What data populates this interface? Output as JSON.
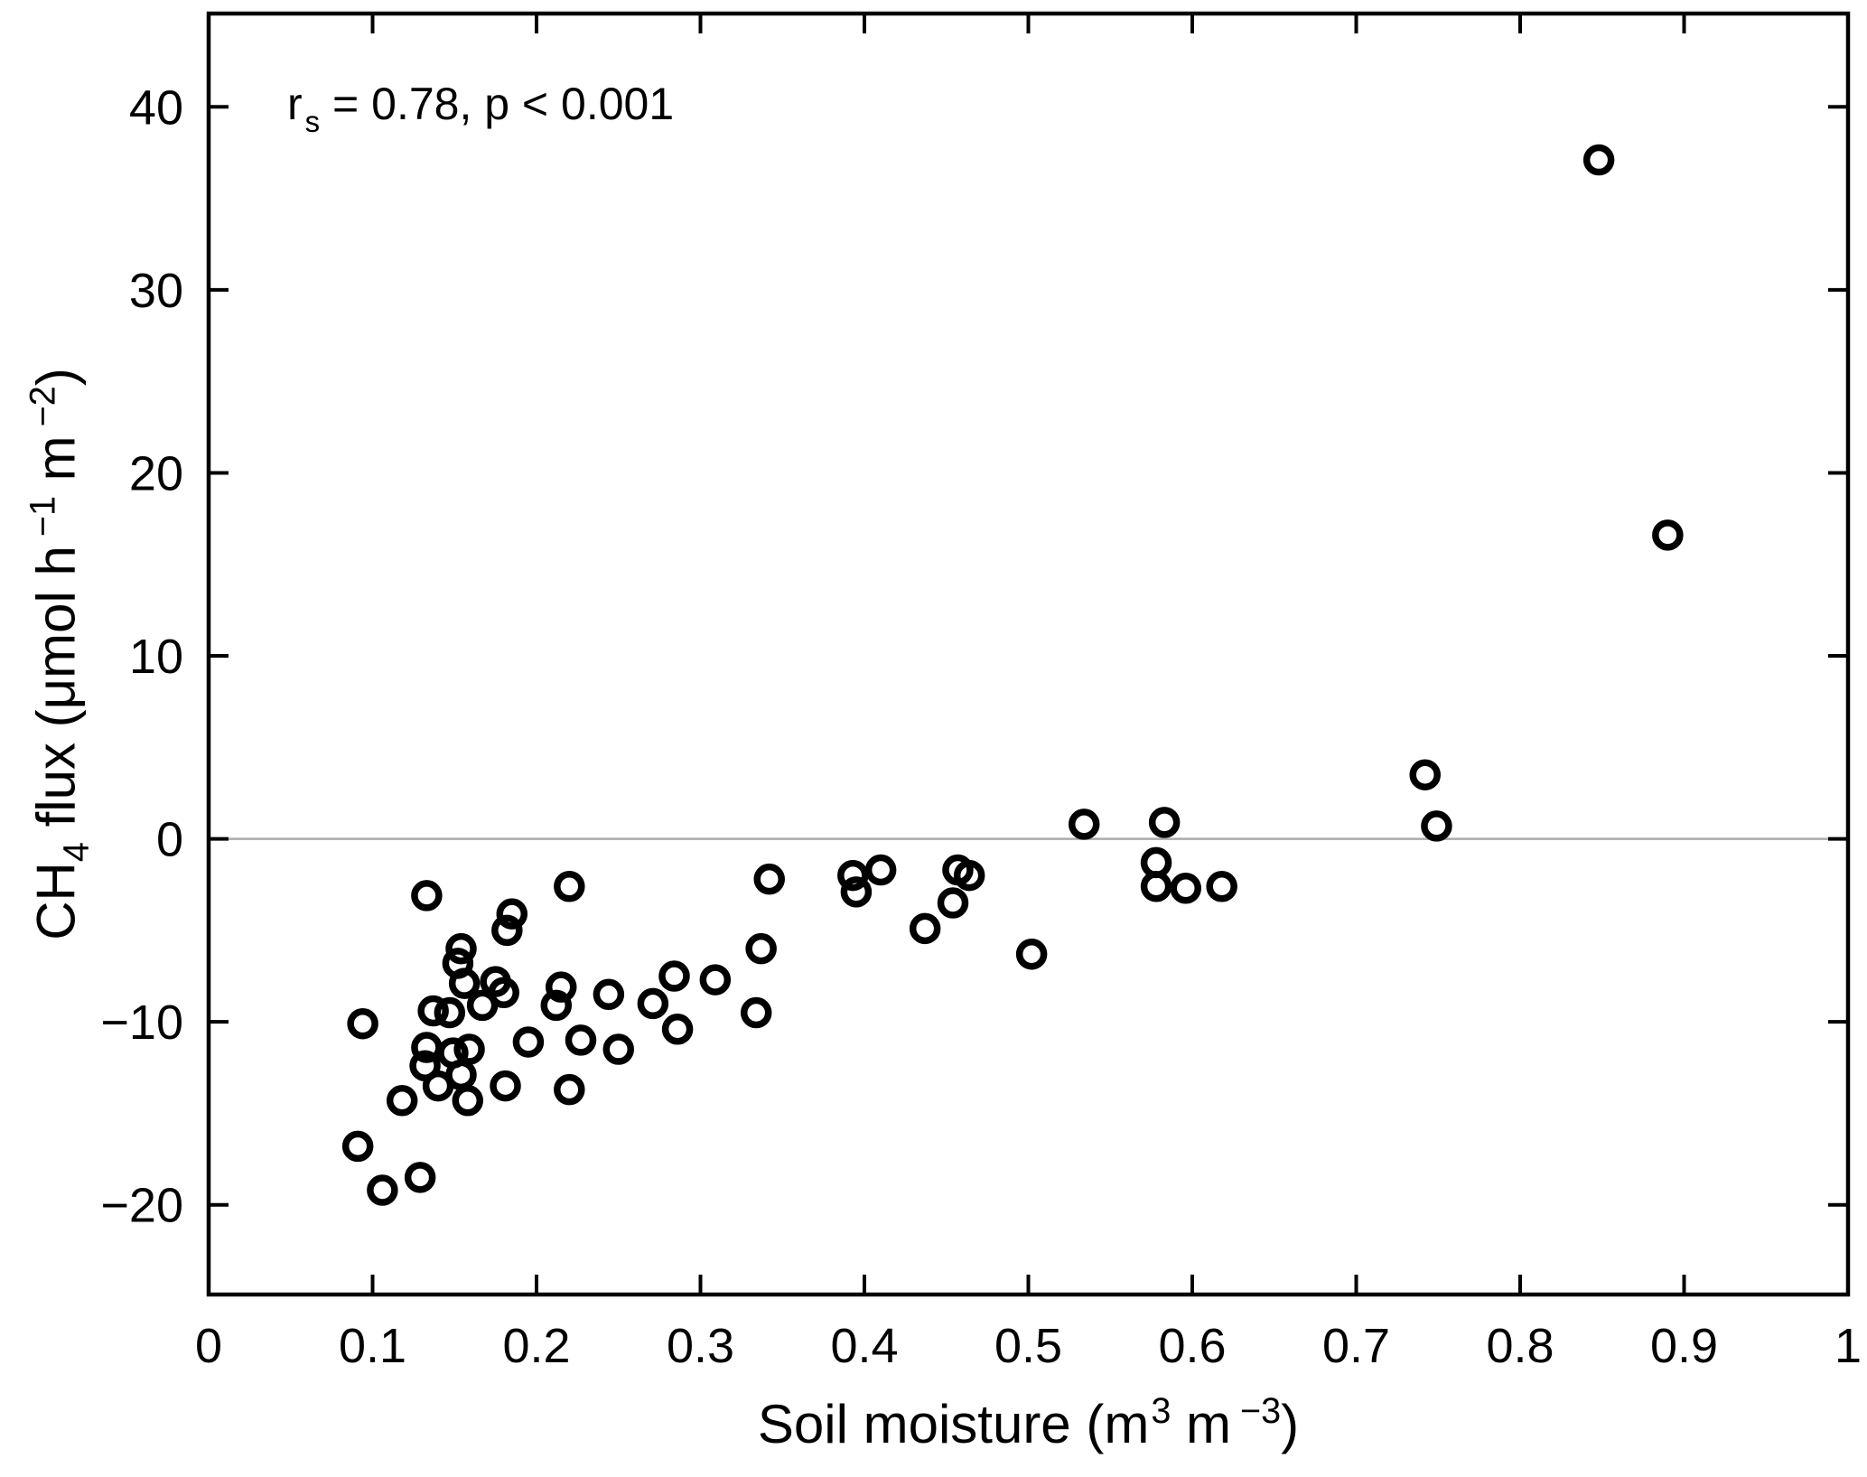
{
  "figure": {
    "annotation": {
      "lead": "r",
      "sub": "s",
      "rest": " = 0.78, p < 0.001"
    },
    "xlabel": {
      "pre": "Soil moisture (m",
      "sup1": "3",
      "mid": " m",
      "sup2": "−3",
      "post": ")"
    },
    "ylabel": {
      "pre": "CH",
      "sub": "4",
      "mid": " flux (μmol h",
      "sup1": "−1",
      "mid2": " m",
      "sup2": "−2",
      "post": ")"
    }
  },
  "chart_data": {
    "type": "scatter",
    "title": "",
    "annotation": "r_s = 0.78, p < 0.001",
    "xlabel": "Soil moisture (m^3 m^-3)",
    "ylabel": "CH4 flux (umol h^-1 m^-2)",
    "xlim": [
      0,
      1
    ],
    "ylim": [
      -24.9,
      45.1
    ],
    "grid": false,
    "zero_line": true,
    "zero_line_color": "#ababab",
    "axis_color": "#000000",
    "marker": {
      "shape": "open-circle",
      "color": "#000000",
      "radius_px": 13.5,
      "stroke_px": 7.5
    },
    "x_ticks": {
      "values": [
        0,
        0.1,
        0.2,
        0.3,
        0.4,
        0.5,
        0.6,
        0.7,
        0.8,
        0.9,
        1
      ],
      "labels": [
        "0",
        "0.1",
        "0.2",
        "0.3",
        "0.4",
        "0.5",
        "0.6",
        "0.7",
        "0.8",
        "0.9",
        "1"
      ]
    },
    "y_ticks": {
      "values": [
        -20,
        -10,
        0,
        10,
        20,
        30,
        40
      ],
      "labels": [
        "−20",
        "−10",
        "0",
        "10",
        "20",
        "30",
        "40"
      ]
    },
    "points": [
      [
        0.094,
        -10.1
      ],
      [
        0.091,
        -16.8
      ],
      [
        0.106,
        -19.2
      ],
      [
        0.129,
        -18.5
      ],
      [
        0.118,
        -14.3
      ],
      [
        0.133,
        -3.1
      ],
      [
        0.22,
        -2.6
      ],
      [
        0.185,
        -4.1
      ],
      [
        0.182,
        -5.0
      ],
      [
        0.154,
        -6.0
      ],
      [
        0.152,
        -6.8
      ],
      [
        0.156,
        -7.9
      ],
      [
        0.175,
        -7.8
      ],
      [
        0.18,
        -8.4
      ],
      [
        0.167,
        -9.1
      ],
      [
        0.137,
        -9.4
      ],
      [
        0.147,
        -9.5
      ],
      [
        0.215,
        -8.1
      ],
      [
        0.212,
        -9.1
      ],
      [
        0.244,
        -8.5
      ],
      [
        0.271,
        -9.0
      ],
      [
        0.284,
        -7.5
      ],
      [
        0.309,
        -7.7
      ],
      [
        0.286,
        -10.4
      ],
      [
        0.195,
        -11.1
      ],
      [
        0.227,
        -11.0
      ],
      [
        0.25,
        -11.5
      ],
      [
        0.133,
        -11.4
      ],
      [
        0.149,
        -11.7
      ],
      [
        0.159,
        -11.5
      ],
      [
        0.132,
        -12.4
      ],
      [
        0.154,
        -12.9
      ],
      [
        0.14,
        -13.5
      ],
      [
        0.181,
        -13.5
      ],
      [
        0.22,
        -13.7
      ],
      [
        0.158,
        -14.3
      ],
      [
        0.342,
        -2.2
      ],
      [
        0.337,
        -6.0
      ],
      [
        0.334,
        -9.5
      ],
      [
        0.393,
        -2.0
      ],
      [
        0.41,
        -1.7
      ],
      [
        0.395,
        -2.9
      ],
      [
        0.457,
        -1.7
      ],
      [
        0.464,
        -2.0
      ],
      [
        0.454,
        -3.5
      ],
      [
        0.437,
        -4.9
      ],
      [
        0.502,
        -6.3
      ],
      [
        0.534,
        0.8
      ],
      [
        0.583,
        0.9
      ],
      [
        0.578,
        -1.3
      ],
      [
        0.578,
        -2.6
      ],
      [
        0.596,
        -2.7
      ],
      [
        0.618,
        -2.6
      ],
      [
        0.742,
        3.5
      ],
      [
        0.749,
        0.7
      ],
      [
        0.848,
        37.1
      ],
      [
        0.89,
        16.6
      ]
    ]
  }
}
